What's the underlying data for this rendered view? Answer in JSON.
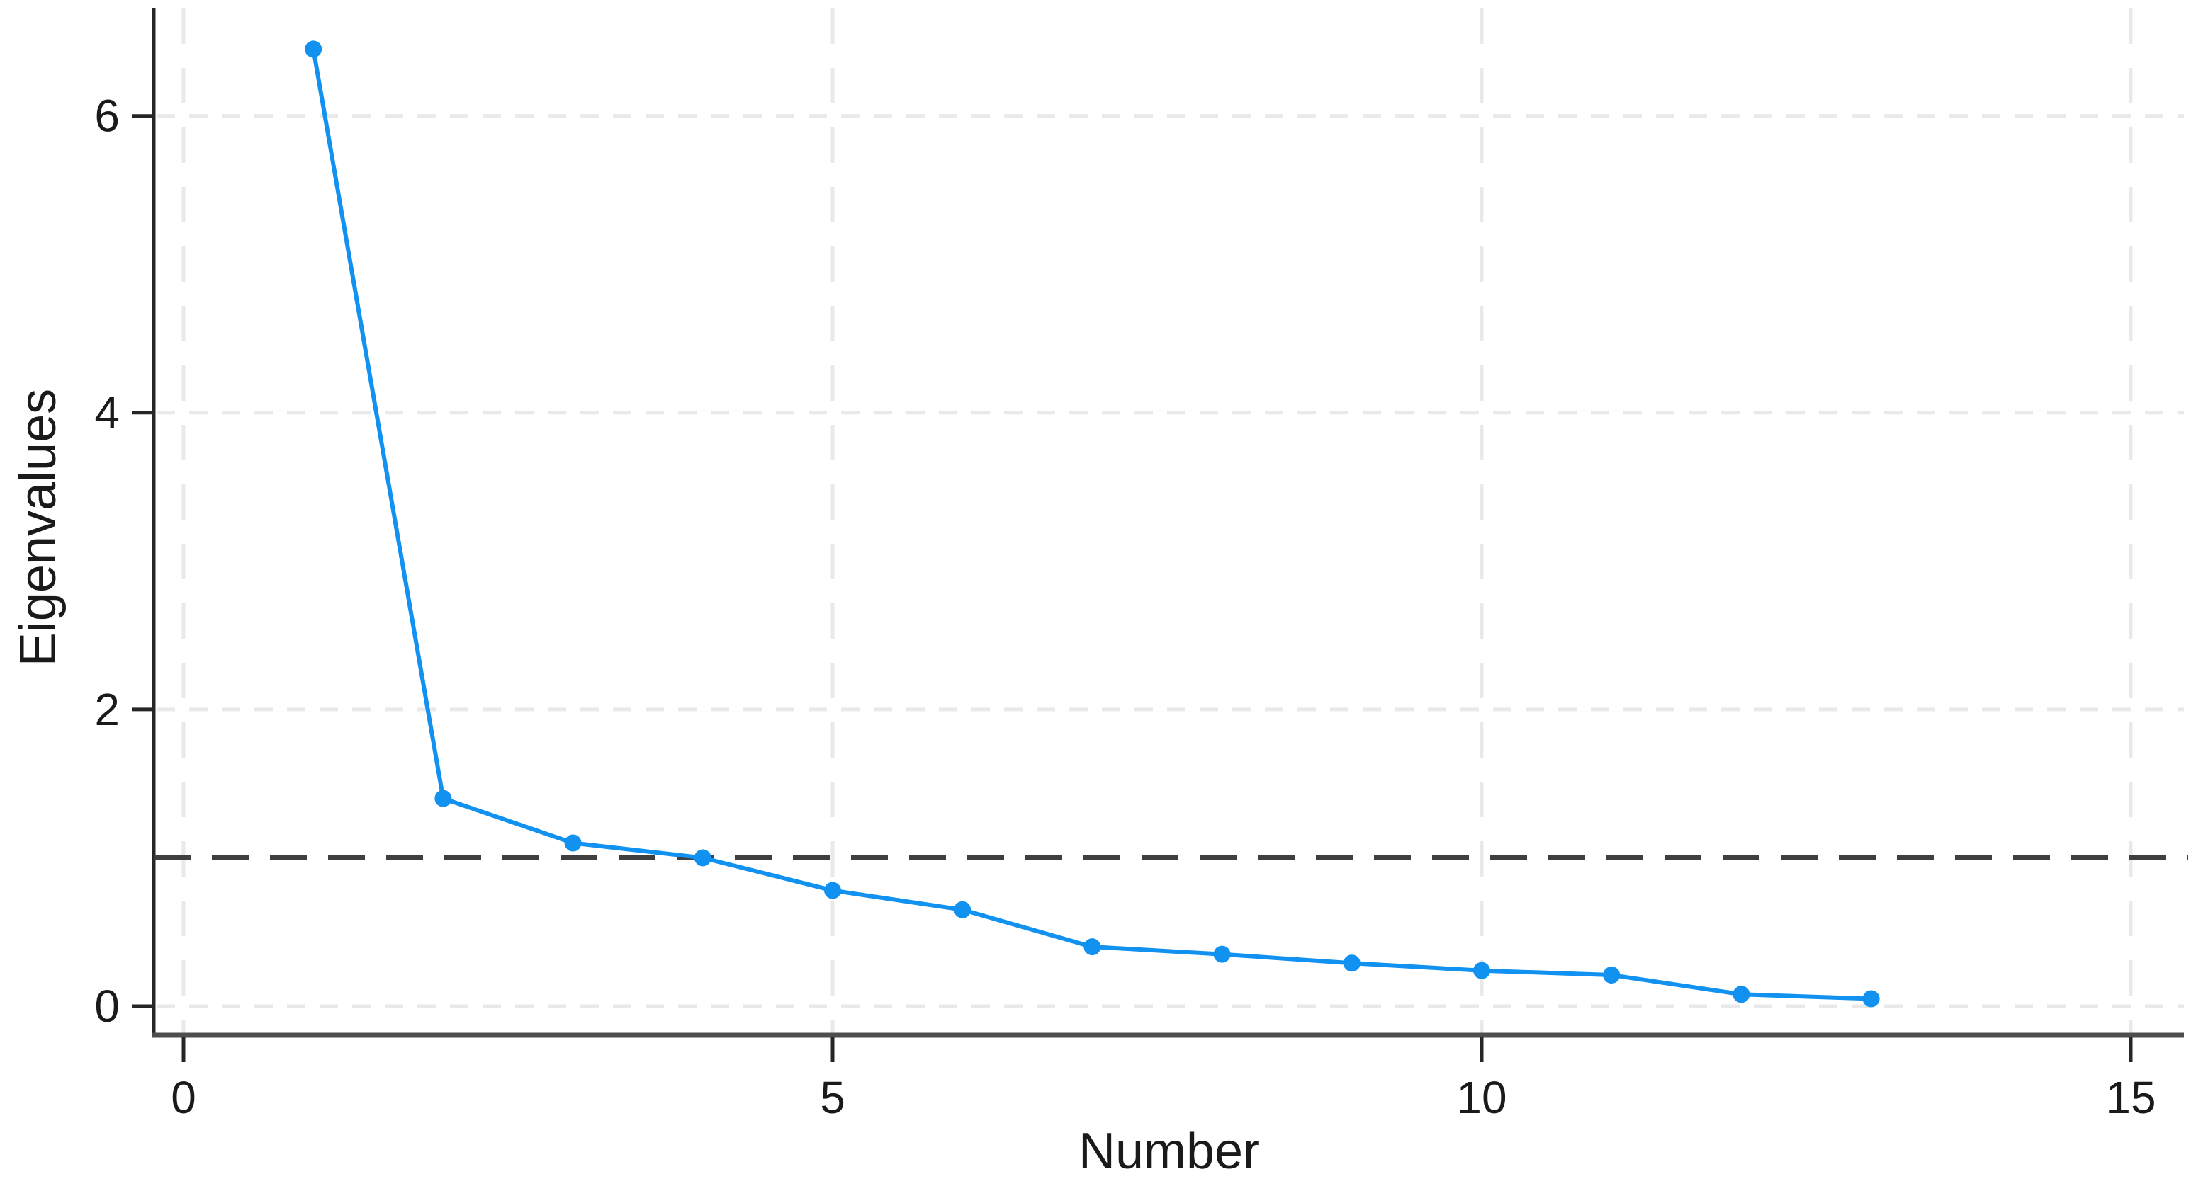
{
  "chart_data": {
    "type": "line",
    "title": "",
    "xlabel": "Number",
    "ylabel": "Eigenvalues",
    "series": [
      {
        "name": "Eigenvalues",
        "x": [
          1,
          2,
          3,
          4,
          5,
          6,
          7,
          8,
          9,
          10,
          11,
          12,
          13
        ],
        "values": [
          6.45,
          1.4,
          1.1,
          1.0,
          0.78,
          0.65,
          0.4,
          0.35,
          0.29,
          0.24,
          0.21,
          0.08,
          0.05
        ]
      }
    ],
    "x_ticks": [
      0,
      5,
      10,
      15
    ],
    "y_ticks": [
      0,
      2,
      4,
      6
    ],
    "xlim": [
      0,
      15.4
    ],
    "ylim": [
      0,
      6.7
    ],
    "reference_line": {
      "y": 1,
      "style": "dashed"
    },
    "grid": "both-dashed-light",
    "legend_position": "none",
    "marker": "circle",
    "colors": {
      "line": "#1191f0",
      "marker": "#1191f0",
      "reference": "#3f3f3f",
      "grid": "#e9e9e9",
      "axis": "#3c3c3c",
      "text": "#1a1a1a",
      "background": "#ffffff"
    }
  }
}
